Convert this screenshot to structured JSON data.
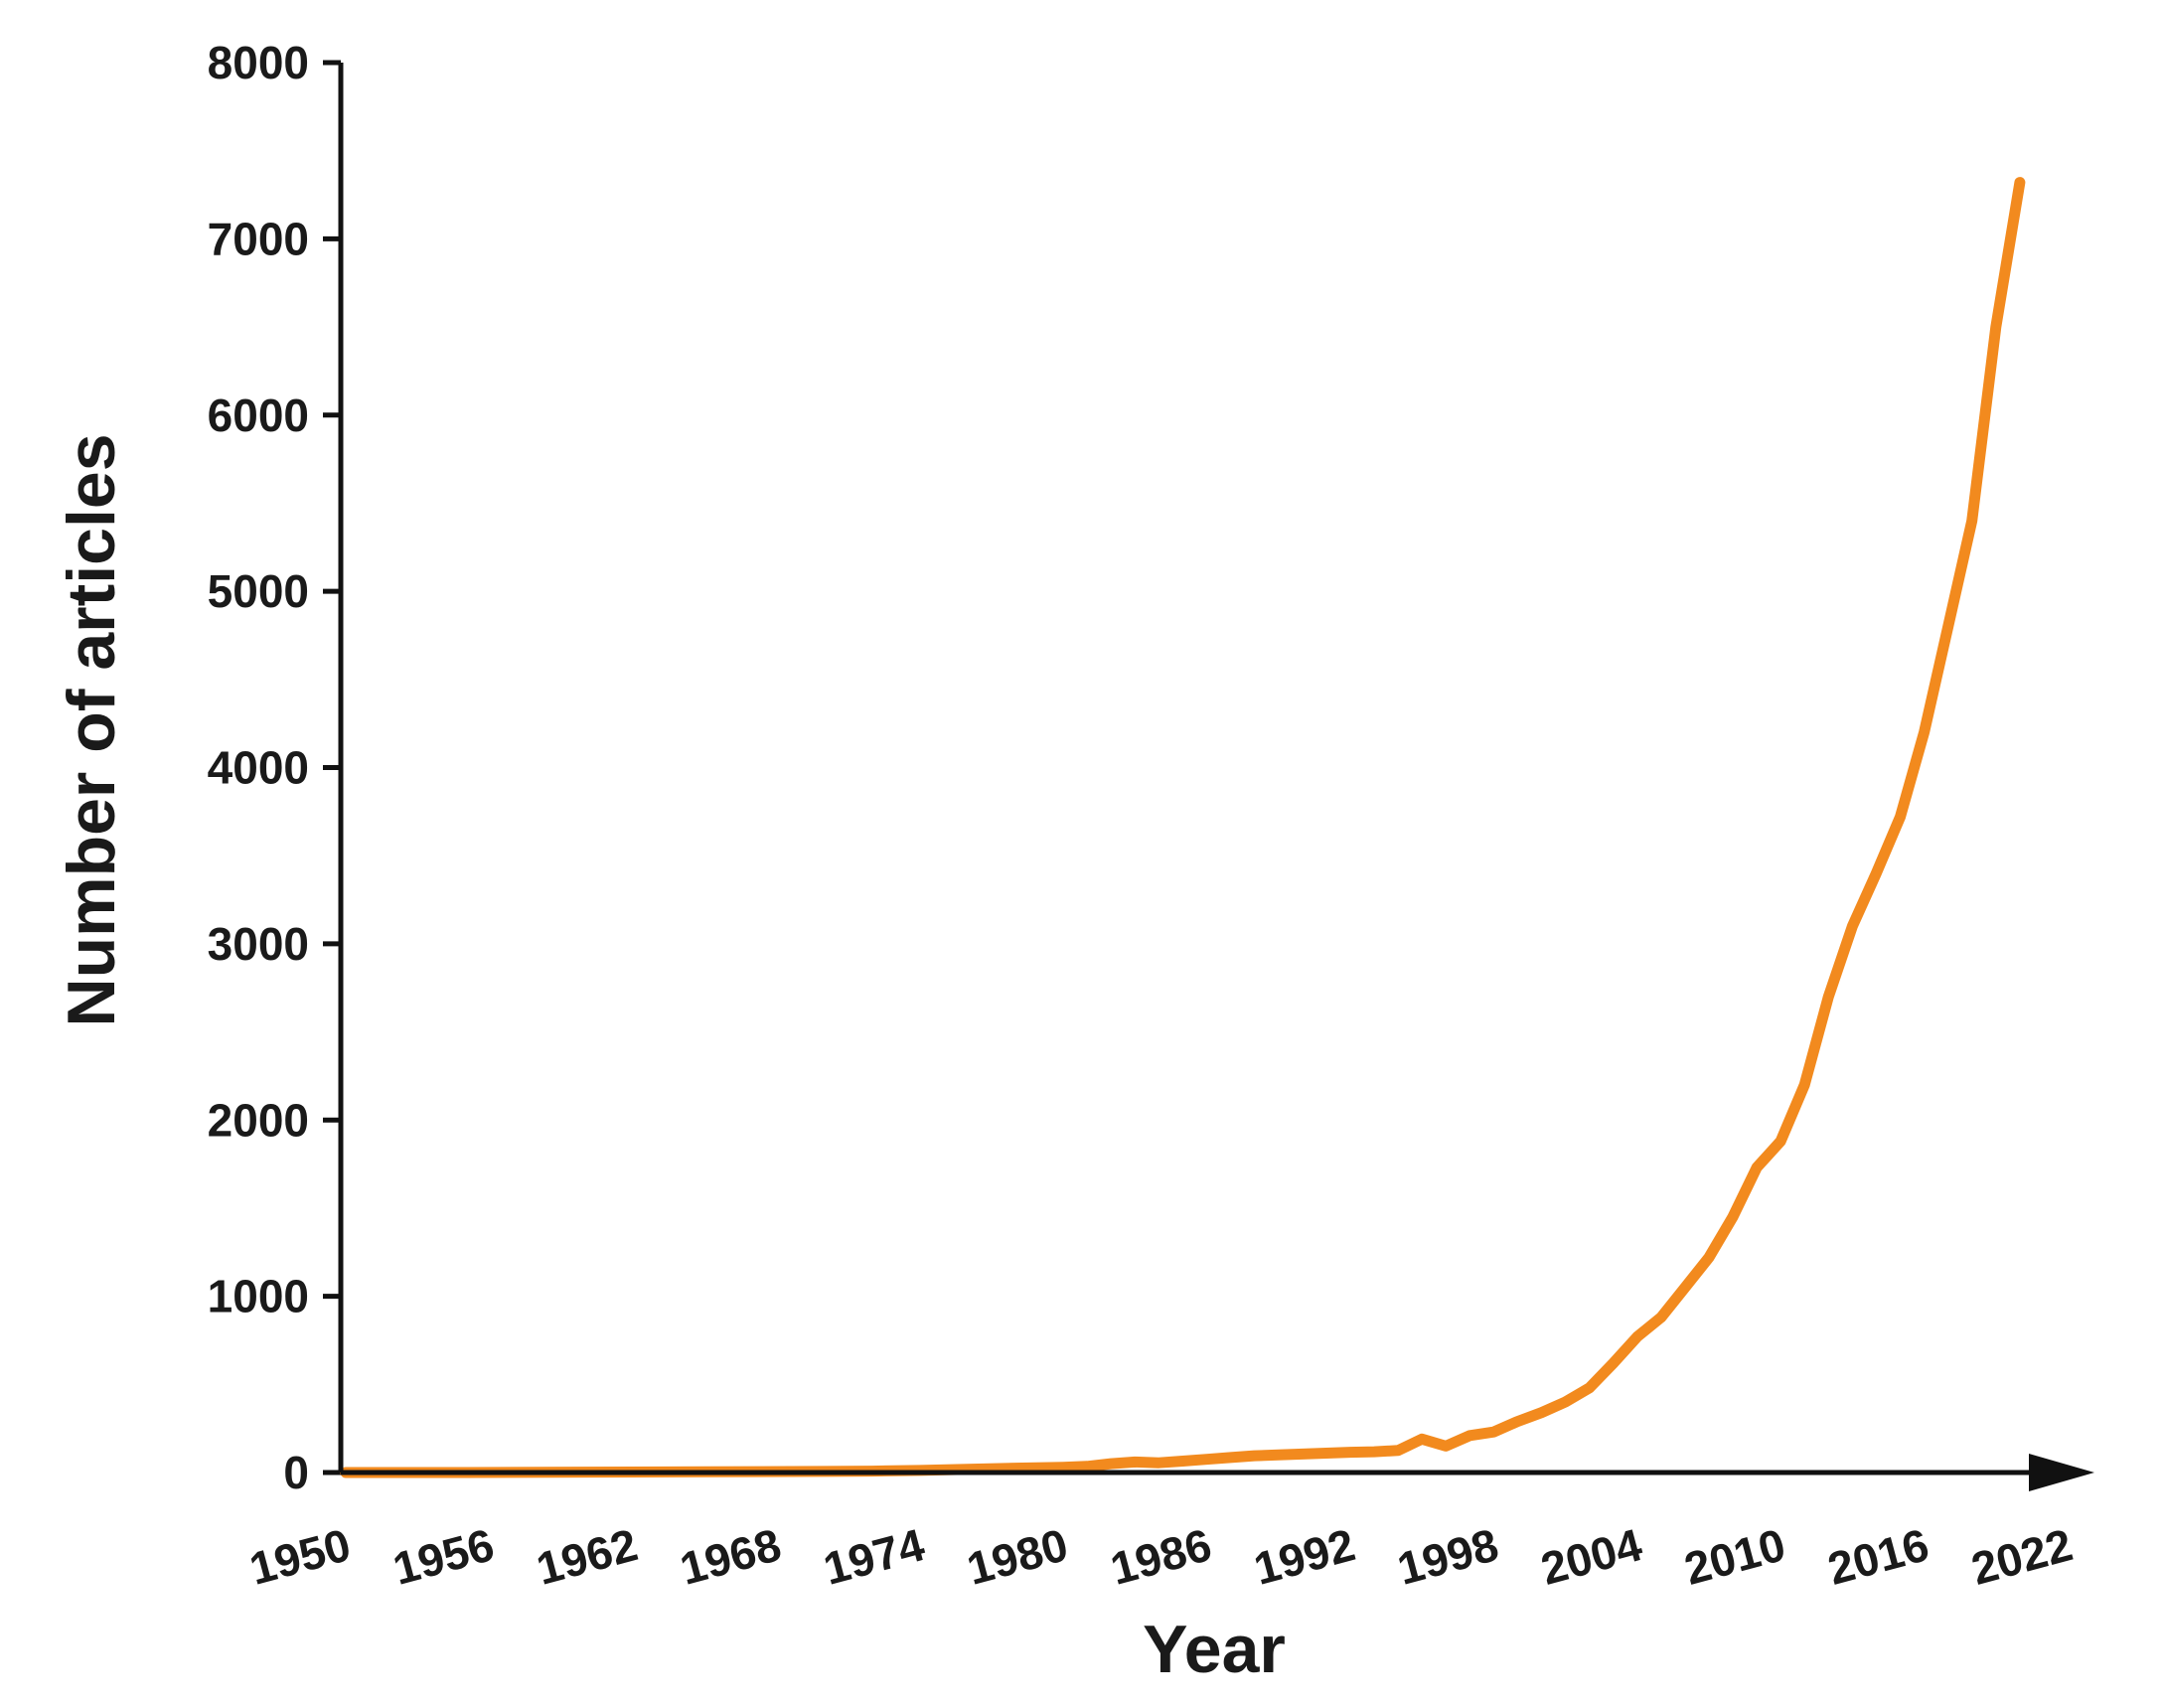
{
  "chart_data": {
    "type": "line",
    "title": "",
    "xlabel": "Year",
    "ylabel": "Number of articles",
    "xlim": [
      1950,
      2022
    ],
    "ylim": [
      0,
      8000
    ],
    "x_ticks": [
      1950,
      1956,
      1962,
      1968,
      1974,
      1980,
      1986,
      1992,
      1998,
      2004,
      2010,
      2016,
      2022
    ],
    "y_ticks": [
      0,
      1000,
      2000,
      3000,
      4000,
      5000,
      6000,
      7000,
      8000
    ],
    "grid": false,
    "legend": "none",
    "series": [
      {
        "color": "#f28a1e",
        "x": [
          1950,
          1955,
          1960,
          1965,
          1970,
          1972,
          1974,
          1976,
          1978,
          1980,
          1981,
          1982,
          1983,
          1984,
          1985,
          1986,
          1987,
          1988,
          1989,
          1990,
          1991,
          1992,
          1993,
          1994,
          1995,
          1996,
          1997,
          1998,
          1999,
          2000,
          2001,
          2002,
          2003,
          2004,
          2005,
          2006,
          2007,
          2008,
          2009,
          2010,
          2011,
          2012,
          2013,
          2014,
          2015,
          2016,
          2017,
          2018,
          2019,
          2020
        ],
        "values": [
          0,
          0,
          2,
          4,
          6,
          8,
          12,
          18,
          25,
          30,
          35,
          50,
          60,
          55,
          65,
          75,
          85,
          95,
          100,
          105,
          110,
          115,
          118,
          125,
          190,
          150,
          210,
          230,
          290,
          340,
          400,
          480,
          620,
          770,
          880,
          1050,
          1220,
          1450,
          1730,
          1880,
          2200,
          2700,
          3100,
          3400,
          3720,
          4200,
          4800,
          5400,
          6500,
          7320
        ]
      }
    ]
  }
}
